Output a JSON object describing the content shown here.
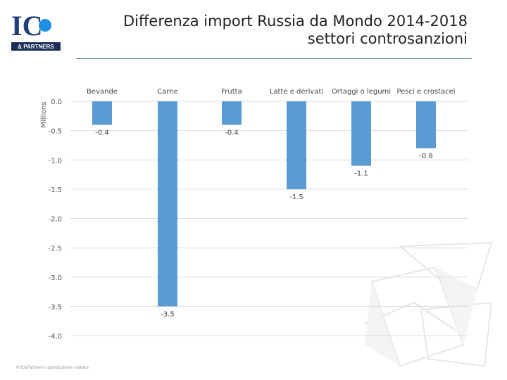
{
  "logo": {
    "letters": "IC",
    "subtitle": "& PARTNERS"
  },
  "title": "Differenza import Russia da Mondo 2014-2018 settori controsanzioni",
  "footer": {
    "copyright": "©IC&Partners riproduzione vietata"
  },
  "colors": {
    "bar": "#5b9bd5",
    "accent": "#1f5fa0",
    "logo_dot": "#1f8fe0",
    "rule": "#2e5f8a"
  },
  "chart_data": {
    "type": "bar",
    "title": "Differenza import Russia da Mondo 2014-2018 settori controsanzioni",
    "ylabel": "Millions",
    "xlabel": "",
    "categories": [
      "Bevande",
      "Carne",
      "Frutta",
      "Latte e derivati",
      "Ortaggi o legumi",
      "Pesci e crostacei"
    ],
    "values": [
      -0.4,
      -3.5,
      -0.4,
      -1.5,
      -1.1,
      -0.8
    ],
    "data_labels": [
      "-0.4",
      "-3.5",
      "-0.4",
      "-1.5",
      "-1.1",
      "-0.8"
    ],
    "ylim": [
      -4.0,
      0.0
    ],
    "yticks": [
      0.0,
      -0.5,
      -1.0,
      -1.5,
      -2.0,
      -2.5,
      -3.0,
      -3.5,
      -4.0
    ],
    "ytick_labels": [
      "0.0",
      "-0.5",
      "-1.0",
      "-1.5",
      "-2.0",
      "-2.5",
      "-3.0",
      "-3.5",
      "-4.0"
    ],
    "grid": true,
    "category_labels_position": "top"
  }
}
